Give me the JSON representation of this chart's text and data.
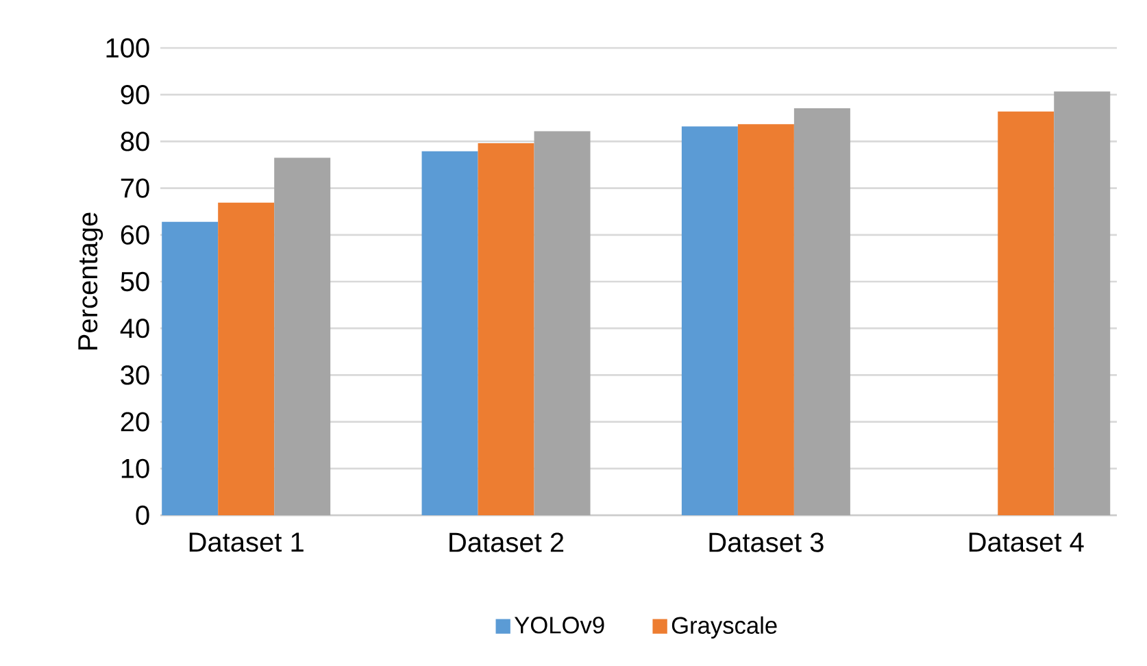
{
  "chart_data": {
    "type": "bar",
    "ylabel": "Percentage",
    "categories": [
      "Dataset 1",
      "Dataset 2",
      "Dataset 3",
      "Dataset 4"
    ],
    "series": [
      {
        "name": "YOLOv9",
        "color": "#5b9bd5",
        "values": [
          62.8,
          77.9,
          83.2,
          null
        ]
      },
      {
        "name": "Grayscale",
        "color": "#ed7d31",
        "values": [
          66.9,
          79.6,
          83.7,
          86.4
        ]
      },
      {
        "color": "#a5a5a5",
        "values": [
          76.5,
          82.2,
          87.1,
          90.7
        ]
      }
    ],
    "ylim": [
      0,
      100
    ],
    "yticks": [
      0,
      10,
      20,
      30,
      40,
      50,
      60,
      70,
      80,
      90,
      100
    ],
    "grid": "y",
    "legend": "bottom"
  }
}
